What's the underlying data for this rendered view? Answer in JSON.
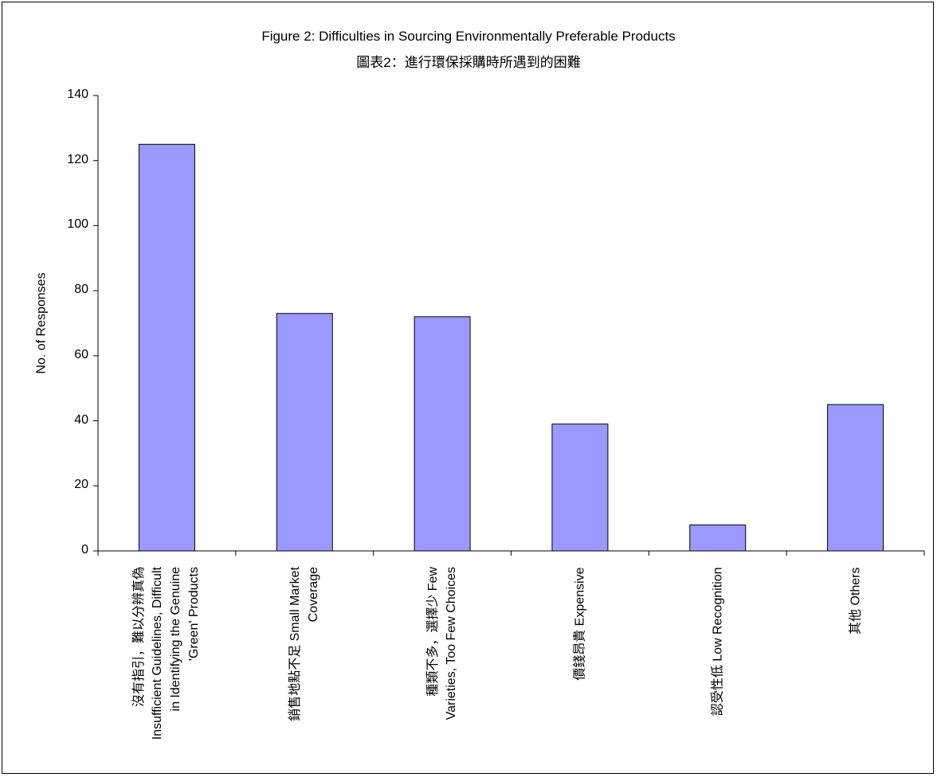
{
  "chart_data": {
    "type": "bar",
    "title": "Figure 2: Difficulties in Sourcing Environmentally Preferable Products",
    "subtitle": "圖表2：進行環保採購時所遇到的困難",
    "xlabel": "",
    "ylabel": "No. of Responses",
    "ylim": [
      0,
      140
    ],
    "yticks": [
      0,
      20,
      40,
      60,
      80,
      100,
      120,
      140
    ],
    "grid": false,
    "bar_color": "#9999ff",
    "categories": [
      "沒有指引，難以分辨真偽 Insufficient Guidelines, Difficult in Identifying the Genuine 'Green' Products",
      "銷售地點不足 Small Market Coverage",
      "種類不多，選擇少 Few Varieties, Too Few Choices",
      "價錢昂貴 Expensive",
      "認受性低 Low Recognition",
      "其他 Others"
    ],
    "values": [
      125,
      73,
      72,
      39,
      8,
      45
    ]
  }
}
